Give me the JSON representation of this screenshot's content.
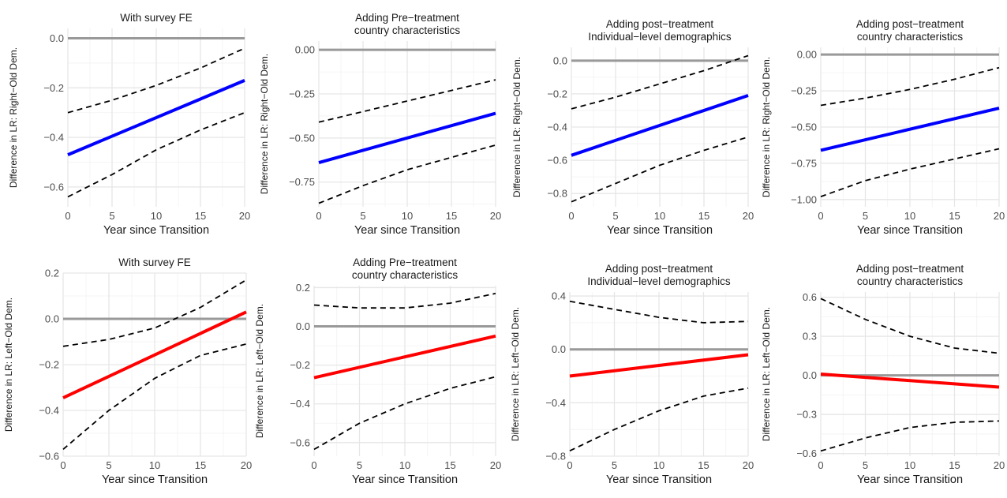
{
  "chart_data": [
    {
      "type": "line",
      "title": [
        "With survey FE"
      ],
      "xlabel": "Year since Transition",
      "ylabel": "Difference in LR: Right−Old Dem.",
      "xlim": [
        0,
        20
      ],
      "ylim": [
        -0.68,
        0.04
      ],
      "xticks": [
        0,
        5,
        10,
        15,
        20
      ],
      "xtick_labels": [
        "0",
        "5",
        "10",
        "15",
        "20"
      ],
      "yticks": [
        0.0,
        -0.2,
        -0.4,
        -0.6
      ],
      "ytick_labels": [
        "0.0",
        "−0.2",
        "−0.4",
        "−0.6"
      ],
      "reference_line": 0,
      "series": [
        {
          "role": "estimate",
          "color": "#0000ff",
          "x": [
            0,
            20
          ],
          "y": [
            -0.47,
            -0.17
          ]
        },
        {
          "role": "upper",
          "x": [
            0,
            5,
            10,
            15,
            20
          ],
          "y": [
            -0.3,
            -0.25,
            -0.19,
            -0.12,
            -0.04
          ]
        },
        {
          "role": "lower",
          "x": [
            0,
            5,
            10,
            15,
            20
          ],
          "y": [
            -0.64,
            -0.55,
            -0.45,
            -0.37,
            -0.3
          ]
        }
      ]
    },
    {
      "type": "line",
      "title": [
        "Adding Pre−treatment",
        "country characteristics"
      ],
      "xlabel": "Year since Transition",
      "ylabel": "Difference in LR: Right−Old Dem.",
      "xlim": [
        0,
        20
      ],
      "ylim": [
        -0.89,
        0.05
      ],
      "xticks": [
        0,
        5,
        10,
        15,
        20
      ],
      "xtick_labels": [
        "0",
        "5",
        "10",
        "15",
        "20"
      ],
      "yticks": [
        0.0,
        -0.25,
        -0.5,
        -0.75
      ],
      "ytick_labels": [
        "0.00",
        "−0.25",
        "−0.50",
        "−0.75"
      ],
      "reference_line": 0,
      "series": [
        {
          "role": "estimate",
          "color": "#0000ff",
          "x": [
            0,
            20
          ],
          "y": [
            -0.64,
            -0.36
          ]
        },
        {
          "role": "upper",
          "x": [
            0,
            5,
            10,
            15,
            20
          ],
          "y": [
            -0.41,
            -0.35,
            -0.29,
            -0.23,
            -0.17
          ]
        },
        {
          "role": "lower",
          "x": [
            0,
            5,
            10,
            15,
            20
          ],
          "y": [
            -0.87,
            -0.77,
            -0.68,
            -0.61,
            -0.54
          ]
        }
      ]
    },
    {
      "type": "line",
      "title": [
        "Adding  post−treatment",
        "Individual−level demographics"
      ],
      "xlabel": "Year since Transition",
      "ylabel": "Difference in LR: Right−Old Dem.",
      "xlim": [
        0,
        20
      ],
      "ylim": [
        -0.88,
        0.08
      ],
      "xticks": [
        0,
        5,
        10,
        15,
        20
      ],
      "xtick_labels": [
        "0",
        "5",
        "10",
        "15",
        "20"
      ],
      "yticks": [
        0.0,
        -0.2,
        -0.4,
        -0.6,
        -0.8
      ],
      "ytick_labels": [
        "0.0",
        "−0.2",
        "−0.4",
        "−0.6",
        "−0.8"
      ],
      "reference_line": 0,
      "series": [
        {
          "role": "estimate",
          "color": "#0000ff",
          "x": [
            0,
            20
          ],
          "y": [
            -0.57,
            -0.21
          ]
        },
        {
          "role": "upper",
          "x": [
            0,
            5,
            10,
            15,
            20
          ],
          "y": [
            -0.29,
            -0.22,
            -0.14,
            -0.06,
            0.03
          ]
        },
        {
          "role": "lower",
          "x": [
            0,
            5,
            10,
            15,
            20
          ],
          "y": [
            -0.85,
            -0.74,
            -0.63,
            -0.54,
            -0.46
          ]
        }
      ]
    },
    {
      "type": "line",
      "title": [
        "Adding post−treatment",
        "country characteristics"
      ],
      "xlabel": "Year since Transition",
      "ylabel": "Difference in LR: Right−Old Dem.",
      "xlim": [
        0,
        20
      ],
      "ylim": [
        -1.05,
        0.05
      ],
      "xticks": [
        0,
        5,
        10,
        15,
        20
      ],
      "xtick_labels": [
        "0",
        "5",
        "10",
        "15",
        "20"
      ],
      "yticks": [
        0.0,
        -0.25,
        -0.5,
        -0.75,
        -1.0
      ],
      "ytick_labels": [
        "0.00",
        "−0.25",
        "−0.50",
        "−0.75",
        "−1.00"
      ],
      "reference_line": 0,
      "series": [
        {
          "role": "estimate",
          "color": "#0000ff",
          "x": [
            0,
            20
          ],
          "y": [
            -0.66,
            -0.37
          ]
        },
        {
          "role": "upper",
          "x": [
            0,
            5,
            10,
            15,
            20
          ],
          "y": [
            -0.35,
            -0.3,
            -0.24,
            -0.17,
            -0.09
          ]
        },
        {
          "role": "lower",
          "x": [
            0,
            5,
            10,
            15,
            20
          ],
          "y": [
            -0.98,
            -0.87,
            -0.79,
            -0.72,
            -0.65
          ]
        }
      ]
    },
    {
      "type": "line",
      "title": [
        "With survey FE"
      ],
      "xlabel": "Year since Transition",
      "ylabel": "Difference in LR: Left−Old Dem.",
      "xlim": [
        0,
        20
      ],
      "ylim": [
        -0.6,
        0.2
      ],
      "xticks": [
        0,
        5,
        10,
        15,
        20
      ],
      "xtick_labels": [
        "0",
        "5",
        "10",
        "15",
        "20"
      ],
      "yticks": [
        0.2,
        0.0,
        -0.2,
        -0.4,
        -0.6
      ],
      "ytick_labels": [
        "0.2",
        "0.0",
        "−0.2",
        "−0.4",
        "−0.6"
      ],
      "reference_line": 0,
      "series": [
        {
          "role": "estimate",
          "color": "#ff0000",
          "x": [
            0,
            20
          ],
          "y": [
            -0.345,
            0.03
          ]
        },
        {
          "role": "upper",
          "x": [
            0,
            5,
            10,
            15,
            20
          ],
          "y": [
            -0.12,
            -0.09,
            -0.04,
            0.05,
            0.17
          ]
        },
        {
          "role": "lower",
          "x": [
            0,
            5,
            10,
            15,
            20
          ],
          "y": [
            -0.57,
            -0.4,
            -0.26,
            -0.16,
            -0.11
          ]
        }
      ]
    },
    {
      "type": "line",
      "title": [
        "Adding Pre−treatment",
        "country characteristics"
      ],
      "xlabel": "Year since Transition",
      "ylabel": "Difference in LR: Left−Old Dem.",
      "xlim": [
        0,
        20
      ],
      "ylim": [
        -0.67,
        0.21
      ],
      "xticks": [
        0,
        5,
        10,
        15,
        20
      ],
      "xtick_labels": [
        "0",
        "5",
        "10",
        "15",
        "20"
      ],
      "yticks": [
        0.2,
        0.0,
        -0.2,
        -0.4,
        -0.6
      ],
      "ytick_labels": [
        "0.2",
        "0.0",
        "−0.2",
        "−0.4",
        "−0.6"
      ],
      "reference_line": 0,
      "series": [
        {
          "role": "estimate",
          "color": "#ff0000",
          "x": [
            0,
            20
          ],
          "y": [
            -0.265,
            -0.05
          ]
        },
        {
          "role": "upper",
          "x": [
            0,
            5,
            10,
            15,
            20
          ],
          "y": [
            0.11,
            0.095,
            0.095,
            0.12,
            0.17
          ]
        },
        {
          "role": "lower",
          "x": [
            0,
            5,
            10,
            15,
            20
          ],
          "y": [
            -0.635,
            -0.5,
            -0.4,
            -0.32,
            -0.26
          ]
        }
      ]
    },
    {
      "type": "line",
      "title": [
        "Adding  post−treatment",
        "Individual−level demographics"
      ],
      "xlabel": "Year since Transition",
      "ylabel": "Difference in LR: Left−Old Dem.",
      "xlim": [
        0,
        20
      ],
      "ylim": [
        -0.8,
        0.43
      ],
      "xticks": [
        0,
        5,
        10,
        15,
        20
      ],
      "xtick_labels": [
        "0",
        "5",
        "10",
        "15",
        "20"
      ],
      "yticks": [
        0.4,
        0.0,
        -0.4,
        -0.8
      ],
      "ytick_labels": [
        "0.4",
        "0.0",
        "−0.4",
        "−0.8"
      ],
      "reference_line": 0,
      "series": [
        {
          "role": "estimate",
          "color": "#ff0000",
          "x": [
            0,
            20
          ],
          "y": [
            -0.2,
            -0.04
          ]
        },
        {
          "role": "upper",
          "x": [
            0,
            5,
            10,
            15,
            20
          ],
          "y": [
            0.36,
            0.3,
            0.24,
            0.2,
            0.21
          ]
        },
        {
          "role": "lower",
          "x": [
            0,
            5,
            10,
            15,
            20
          ],
          "y": [
            -0.76,
            -0.6,
            -0.46,
            -0.35,
            -0.29
          ]
        }
      ]
    },
    {
      "type": "line",
      "title": [
        "Adding post−treatment",
        "country characteristics"
      ],
      "xlabel": "Year since Transition",
      "ylabel": "Difference in LR: Left−Old Dem.",
      "xlim": [
        0,
        20
      ],
      "ylim": [
        -0.62,
        0.64
      ],
      "xticks": [
        0,
        5,
        10,
        15,
        20
      ],
      "xtick_labels": [
        "0",
        "5",
        "10",
        "15",
        "20"
      ],
      "yticks": [
        0.6,
        0.3,
        0.0,
        -0.3,
        -0.6
      ],
      "ytick_labels": [
        "0.6",
        "0.3",
        "0.0",
        "−0.3",
        "−0.6"
      ],
      "reference_line": 0,
      "series": [
        {
          "role": "estimate",
          "color": "#ff0000",
          "x": [
            0,
            20
          ],
          "y": [
            0.01,
            -0.09
          ]
        },
        {
          "role": "upper",
          "x": [
            0,
            5,
            10,
            15,
            20
          ],
          "y": [
            0.59,
            0.43,
            0.3,
            0.21,
            0.17
          ]
        },
        {
          "role": "lower",
          "x": [
            0,
            5,
            10,
            15,
            20
          ],
          "y": [
            -0.58,
            -0.48,
            -0.4,
            -0.36,
            -0.35
          ]
        }
      ]
    }
  ]
}
